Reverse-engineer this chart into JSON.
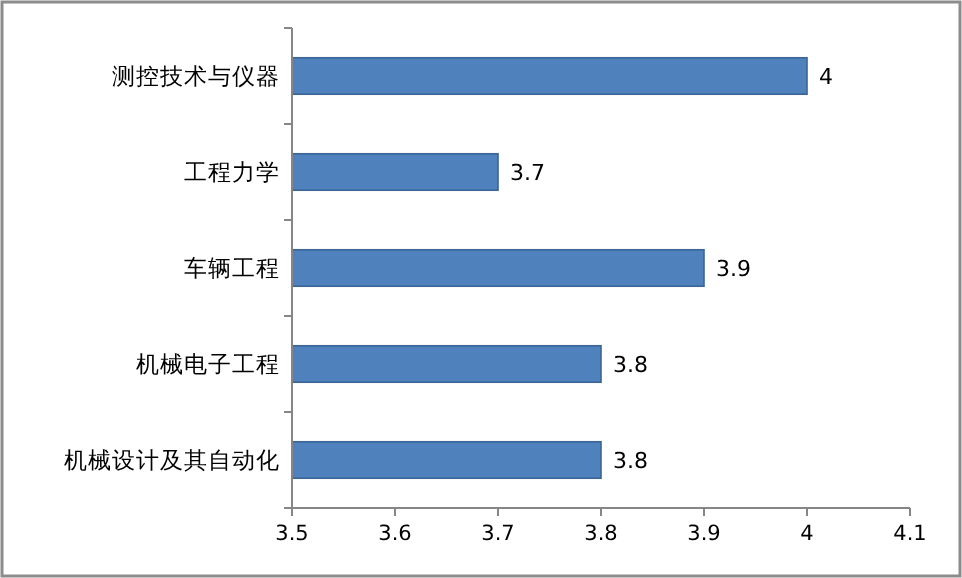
{
  "chart_data": {
    "type": "bar",
    "orientation": "horizontal",
    "categories": [
      "测控技术与仪器",
      "工程力学",
      "车辆工程",
      "机械电子工程",
      "机械设计及其自动化"
    ],
    "values": [
      4,
      3.7,
      3.9,
      3.8,
      3.8
    ],
    "color": "#4f81bd",
    "xlim": [
      3.5,
      4.1
    ],
    "xticks": [
      3.5,
      3.6,
      3.7,
      3.8,
      3.9,
      4,
      4.1
    ],
    "data_labels": true,
    "grid": false
  }
}
